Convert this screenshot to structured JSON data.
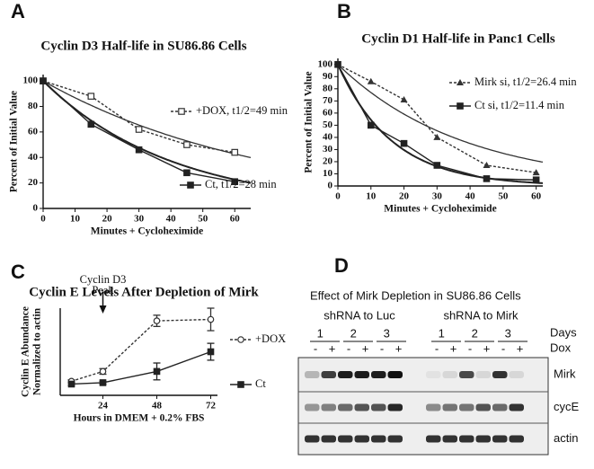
{
  "chart_data": [
    {
      "type": "line",
      "panel": "A",
      "title": "Cyclin D3 Half-life in SU86.86 Cells",
      "xlabel": "Minutes + Cycloheximide",
      "ylabel": "Percent of Initial Value",
      "x": [
        0,
        15,
        30,
        45,
        60
      ],
      "xlim": [
        0,
        65
      ],
      "xticks": [
        0,
        10,
        20,
        30,
        40,
        50,
        60
      ],
      "ylim": [
        0,
        105
      ],
      "yticks": [
        0,
        20,
        40,
        60,
        80,
        100
      ],
      "series": [
        {
          "name": "+DOX, t1/2=49 min",
          "half_life": 49,
          "color": "#333333",
          "marker": "open-square",
          "dashed": true,
          "values": [
            100,
            88,
            62,
            50,
            44
          ]
        },
        {
          "name": "Ct, t1/2=28 min",
          "half_life": 28,
          "color": "#222222",
          "marker": "square",
          "dashed": false,
          "values": [
            100,
            66,
            46,
            28,
            21
          ]
        }
      ]
    },
    {
      "type": "line",
      "panel": "B",
      "title": "Cyclin D1 Half-life in Panc1 Cells",
      "xlabel": "Minutes + Cycloheximide",
      "ylabel": "Percent of Initial Value",
      "x": [
        0,
        10,
        20,
        30,
        45,
        60
      ],
      "xlim": [
        0,
        62
      ],
      "xticks": [
        0,
        10,
        20,
        30,
        40,
        50,
        60
      ],
      "ylim": [
        0,
        105
      ],
      "yticks": [
        0,
        10,
        20,
        30,
        40,
        50,
        60,
        70,
        80,
        90,
        100
      ],
      "series": [
        {
          "name": "Mirk si, t1/2=26.4 min",
          "half_life": 26.4,
          "color": "#333333",
          "marker": "triangle",
          "dashed": true,
          "values": [
            100,
            86,
            71,
            40,
            17,
            11
          ]
        },
        {
          "name": "Ct si, t1/2=11.4 min",
          "half_life": 11.4,
          "color": "#222222",
          "marker": "square",
          "dashed": false,
          "values": [
            100,
            50,
            35,
            17,
            6,
            5
          ]
        }
      ]
    },
    {
      "type": "line",
      "panel": "C",
      "title": "Cyclin E Levels After Depletion of Mirk",
      "xlabel": "Hours in DMEM + 0.2% FBS",
      "ylabel": [
        "Cyclin E Abundance",
        "Normalized to actin"
      ],
      "x": [
        10,
        24,
        48,
        72
      ],
      "xlim": [
        5,
        75
      ],
      "xticks": [
        24,
        48,
        72
      ],
      "ylim": [
        0.6,
        3.7
      ],
      "annotation": {
        "text": [
          "Cyclin D3",
          "Peak"
        ],
        "x": 24
      },
      "series": [
        {
          "name": "+DOX",
          "color": "#333333",
          "marker": "open-circle",
          "dashed": true,
          "values": [
            1.1,
            1.45,
            3.25,
            3.3
          ],
          "errors": [
            0.05,
            0.1,
            0.2,
            0.4
          ]
        },
        {
          "name": "Ct",
          "color": "#222222",
          "marker": "square",
          "dashed": false,
          "values": [
            1.0,
            1.05,
            1.45,
            2.15
          ],
          "errors": [
            0.05,
            0.05,
            0.3,
            0.3
          ]
        }
      ]
    }
  ],
  "blot": {
    "panel": "D",
    "title": "Effect of Mirk Depletion in SU86.86 Cells",
    "groups": [
      "shRNA to Luc",
      "shRNA to Mirk"
    ],
    "days": [
      "1",
      "2",
      "3"
    ],
    "days_label": "Days",
    "dox_label": "Dox",
    "dox": [
      "-",
      "+"
    ],
    "rows": [
      "Mirk",
      "cycE",
      "actin"
    ]
  }
}
